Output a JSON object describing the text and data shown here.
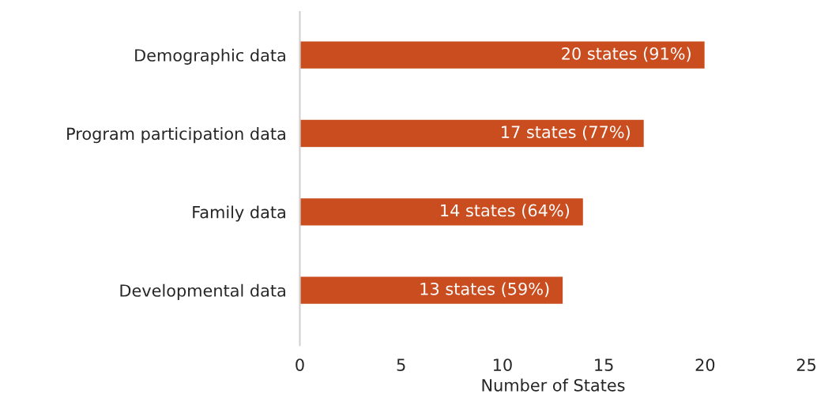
{
  "chart_data": {
    "type": "bar",
    "orientation": "horizontal",
    "xlabel": "Number of States",
    "categories": [
      "Demographic data",
      "Program participation data",
      "Family data",
      "Developmental data"
    ],
    "values": [
      20,
      17,
      14,
      13
    ],
    "value_labels": [
      "20 states (91%)",
      "17 states (77%)",
      "14 states (64%)",
      "13 states (59%)"
    ],
    "color": "#c94d1f",
    "xlim": [
      0,
      25
    ],
    "xticks": [
      0,
      5,
      10,
      15,
      20,
      25
    ],
    "grid": false
  }
}
